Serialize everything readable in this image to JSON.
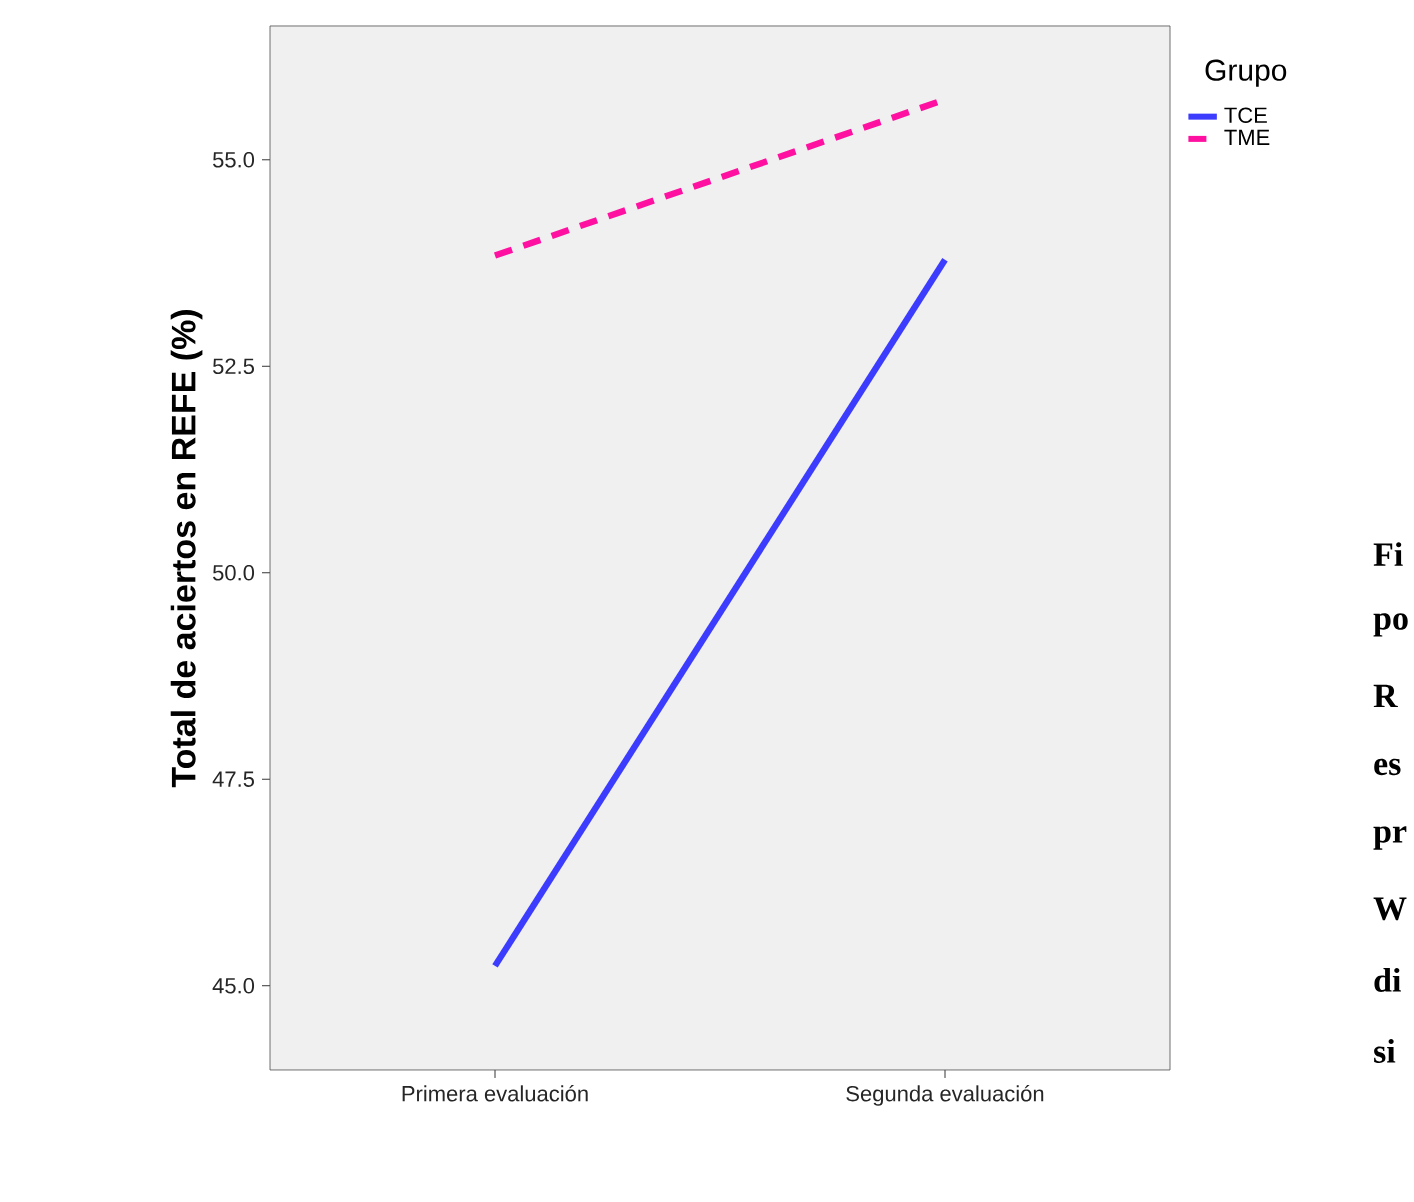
{
  "chart_data": {
    "type": "line",
    "ylabel": "Total de aciertos en REFE (%)",
    "legend_title": "Grupo",
    "categories": [
      "Primera evaluación",
      "Segunda evaluación"
    ],
    "series": [
      {
        "name": "TCE",
        "color": "#3c3cff",
        "line_style": "solid",
        "values": [
          45.24,
          53.79
        ]
      },
      {
        "name": "TME",
        "color": "#ff10a0",
        "line_style": "dashed",
        "values": [
          53.84,
          55.73
        ]
      }
    ],
    "ylim": [
      43.98,
      56.62
    ],
    "yticks": [
      {
        "value": 45,
        "label": "45.0"
      },
      {
        "value": 47.5,
        "label": "47.5"
      },
      {
        "value": 50,
        "label": "50.0"
      },
      {
        "value": 52.5,
        "label": "52.5"
      },
      {
        "value": 55,
        "label": "55.0"
      }
    ],
    "grid": false,
    "legend": "right",
    "marker": "none",
    "annotations": [
      "Fi",
      "po",
      "R",
      "es",
      "pr",
      "W",
      "di",
      "si"
    ]
  }
}
